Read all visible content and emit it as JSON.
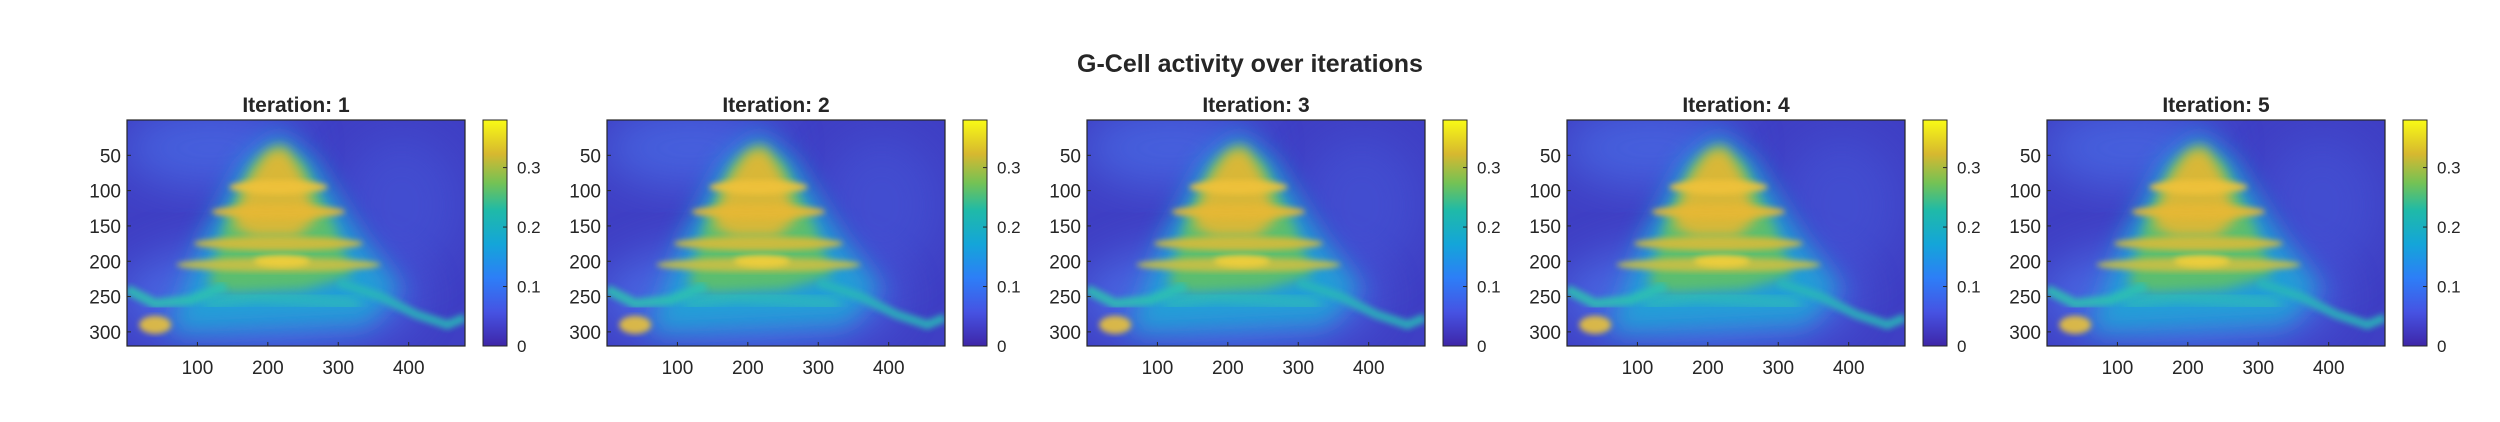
{
  "figure": {
    "title": "G-Cell activity over iterations"
  },
  "chart_data": [
    {
      "type": "heatmap",
      "title": "Iteration: 1",
      "xlim": [
        0,
        480
      ],
      "ylim": [
        320,
        0
      ],
      "xticks": [
        100,
        200,
        300,
        400
      ],
      "yticks": [
        50,
        100,
        150,
        200,
        250,
        300
      ],
      "colorbar": {
        "range": [
          0,
          0.38
        ],
        "ticks": [
          0,
          0.1,
          0.2,
          0.3
        ],
        "tick_labels": [
          "0",
          "0.1",
          "0.2",
          "0.3"
        ]
      }
    },
    {
      "type": "heatmap",
      "title": "Iteration: 2",
      "xlim": [
        0,
        480
      ],
      "ylim": [
        320,
        0
      ],
      "xticks": [
        100,
        200,
        300,
        400
      ],
      "yticks": [
        50,
        100,
        150,
        200,
        250,
        300
      ],
      "colorbar": {
        "range": [
          0,
          0.38
        ],
        "ticks": [
          0,
          0.1,
          0.2,
          0.3
        ],
        "tick_labels": [
          "0",
          "0.1",
          "0.2",
          "0.3"
        ]
      }
    },
    {
      "type": "heatmap",
      "title": "Iteration: 3",
      "xlim": [
        0,
        480
      ],
      "ylim": [
        320,
        0
      ],
      "xticks": [
        100,
        200,
        300,
        400
      ],
      "yticks": [
        50,
        100,
        150,
        200,
        250,
        300
      ],
      "colorbar": {
        "range": [
          0,
          0.38
        ],
        "ticks": [
          0,
          0.1,
          0.2,
          0.3
        ],
        "tick_labels": [
          "0",
          "0.1",
          "0.2",
          "0.3"
        ]
      }
    },
    {
      "type": "heatmap",
      "title": "Iteration: 4",
      "xlim": [
        0,
        480
      ],
      "ylim": [
        320,
        0
      ],
      "xticks": [
        100,
        200,
        300,
        400
      ],
      "yticks": [
        50,
        100,
        150,
        200,
        250,
        300
      ],
      "colorbar": {
        "range": [
          0,
          0.38
        ],
        "ticks": [
          0,
          0.1,
          0.2,
          0.3
        ],
        "tick_labels": [
          "0",
          "0.1",
          "0.2",
          "0.3"
        ]
      }
    },
    {
      "type": "heatmap",
      "title": "Iteration: 5",
      "xlim": [
        0,
        480
      ],
      "ylim": [
        320,
        0
      ],
      "xticks": [
        100,
        200,
        300,
        400
      ],
      "yticks": [
        50,
        100,
        150,
        200,
        250,
        300
      ],
      "colorbar": {
        "range": [
          0,
          0.38
        ],
        "ticks": [
          0,
          0.1,
          0.2,
          0.3
        ],
        "tick_labels": [
          "0",
          "0.1",
          "0.2",
          "0.3"
        ]
      }
    }
  ]
}
